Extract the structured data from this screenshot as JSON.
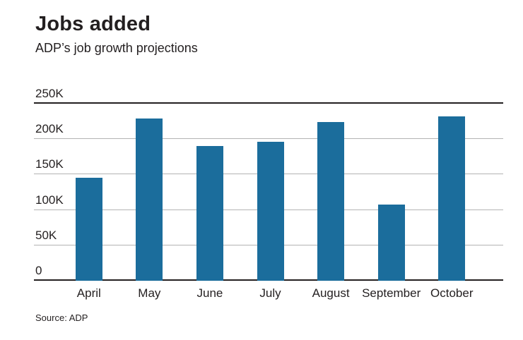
{
  "header": {
    "title": "Jobs added",
    "subtitle": "ADP’s job growth projections"
  },
  "footer": {
    "source": "Source: ADP"
  },
  "chart_data": {
    "type": "bar",
    "title": "Jobs added",
    "subtitle": "ADP's job growth projections",
    "categories": [
      "April",
      "May",
      "June",
      "July",
      "August",
      "September",
      "October"
    ],
    "values": [
      145,
      229,
      190,
      196,
      224,
      108,
      232
    ],
    "unit": "thousands of jobs",
    "xlabel": "",
    "ylabel": "",
    "ylim": [
      0,
      250
    ],
    "yticks": [
      0,
      50,
      100,
      150,
      200,
      250
    ],
    "ytick_labels": [
      "0",
      "50K",
      "100K",
      "150K",
      "200K",
      "250K"
    ],
    "grid": true,
    "legend": "none",
    "bar_color": "#1b6d9c",
    "grid_color": "#b3b3b3",
    "axis_color": "#231f20",
    "source": "Source: ADP"
  }
}
